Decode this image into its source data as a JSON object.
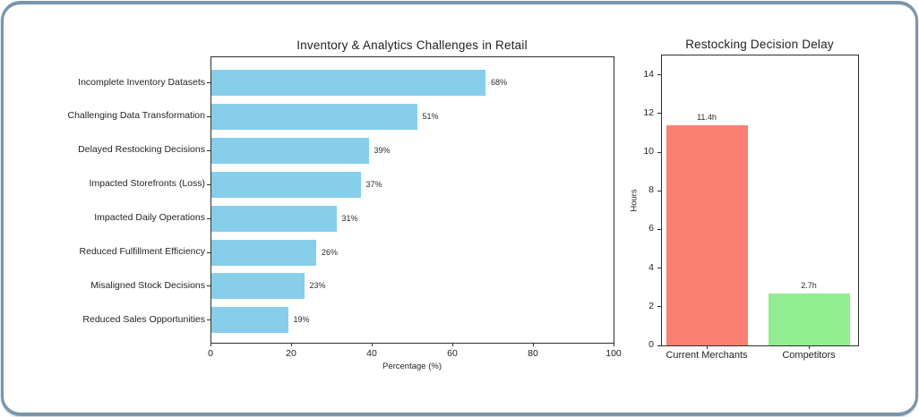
{
  "card": {
    "border_color": "#7b95a9",
    "background": "#ffffff"
  },
  "chart_data": [
    {
      "type": "bar",
      "orientation": "horizontal",
      "title": "Inventory & Analytics Challenges in Retail",
      "categories": [
        "Incomplete Inventory Datasets",
        "Challenging Data Transformation",
        "Delayed Restocking Decisions",
        "Impacted Storefronts (Loss)",
        "Impacted Daily Operations",
        "Reduced Fulfillment Efficiency",
        "Misaligned Stock Decisions",
        "Reduced Sales Opportunities"
      ],
      "values": [
        68,
        51,
        39,
        37,
        31,
        26,
        23,
        19
      ],
      "value_labels": [
        "68%",
        "51%",
        "39%",
        "37%",
        "31%",
        "26%",
        "23%",
        "19%"
      ],
      "xlabel": "Percentage (%)",
      "xlim": [
        0,
        100
      ],
      "x_ticks": [
        0,
        20,
        40,
        60,
        80,
        100
      ],
      "bar_color": "#87CEEB",
      "grid": false,
      "legend": "none"
    },
    {
      "type": "bar",
      "orientation": "vertical",
      "title": "Restocking Decision Delay",
      "categories": [
        "Current Merchants",
        "Competitors"
      ],
      "values": [
        11.4,
        2.7
      ],
      "value_labels": [
        "11.4h",
        "2.7h"
      ],
      "ylabel": "Hours",
      "ylim": [
        0,
        15
      ],
      "y_ticks": [
        0,
        2,
        4,
        6,
        8,
        10,
        12,
        14
      ],
      "bar_colors": [
        "#FA8072",
        "#90EE90"
      ],
      "grid": false,
      "legend": "none"
    }
  ]
}
